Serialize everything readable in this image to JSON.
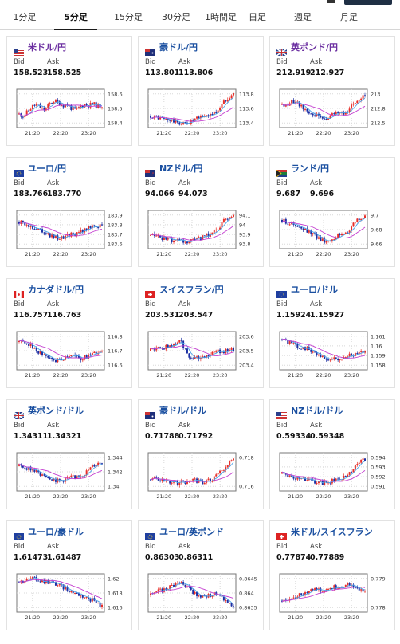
{
  "colors": {
    "up": "#e8302a",
    "down": "#1c2fa3",
    "ma_short": "#4aa3e8",
    "ma_long": "#c43fd0",
    "grid": "#d8d8d8"
  },
  "tabs": [
    {
      "label": "1分足",
      "active": false
    },
    {
      "label": "5分足",
      "active": true
    },
    {
      "label": "15分足",
      "active": false
    },
    {
      "label": "30分足",
      "active": false
    },
    {
      "label": "1時間足",
      "active": false
    },
    {
      "label": "日足",
      "active": false
    },
    {
      "label": "週足",
      "active": false
    },
    {
      "label": "月足",
      "active": false
    }
  ],
  "labels": {
    "bid": "Bid",
    "ask": "Ask"
  },
  "x_ticks": [
    "21:20",
    "22:20",
    "23:20"
  ],
  "pairs": [
    {
      "name": "米ドル/円",
      "flag": "us",
      "purple": true,
      "bid": "158.523",
      "ask": "158.525",
      "yticks": [
        "158.6",
        "158.5",
        "158.4"
      ],
      "trend": [
        0.35,
        0.3,
        0.42,
        0.55,
        0.6,
        0.5,
        0.45,
        0.62,
        0.7,
        0.65,
        0.58,
        0.6,
        0.5,
        0.45,
        0.55,
        0.6,
        0.58,
        0.62,
        0.55,
        0.58
      ]
    },
    {
      "name": "豪ドル/円",
      "flag": "au",
      "purple": false,
      "bid": "113.801",
      "ask": "113.806",
      "yticks": [
        "113.8",
        "113.6",
        "113.4"
      ],
      "trend": [
        0.3,
        0.28,
        0.25,
        0.22,
        0.2,
        0.18,
        0.15,
        0.1,
        0.12,
        0.15,
        0.2,
        0.25,
        0.3,
        0.32,
        0.35,
        0.4,
        0.55,
        0.7,
        0.82,
        0.88
      ]
    },
    {
      "name": "英ポンド/円",
      "flag": "gb",
      "purple": true,
      "bid": "212.919",
      "ask": "212.927",
      "yticks": [
        "213",
        "212.8",
        "212.5"
      ],
      "trend": [
        0.6,
        0.62,
        0.65,
        0.7,
        0.58,
        0.5,
        0.4,
        0.35,
        0.3,
        0.25,
        0.2,
        0.3,
        0.35,
        0.4,
        0.38,
        0.45,
        0.6,
        0.7,
        0.8,
        0.85
      ]
    },
    {
      "name": "ユーロ/円",
      "flag": "eu",
      "purple": false,
      "bid": "183.766",
      "ask": "183.770",
      "yticks": [
        "183.9",
        "183.8",
        "183.7",
        "183.6"
      ],
      "trend": [
        0.7,
        0.65,
        0.6,
        0.58,
        0.55,
        0.5,
        0.45,
        0.35,
        0.3,
        0.28,
        0.3,
        0.35,
        0.4,
        0.38,
        0.45,
        0.5,
        0.55,
        0.62,
        0.6,
        0.58
      ]
    },
    {
      "name": "NZドル/円",
      "flag": "nz",
      "purple": false,
      "bid": "94.066",
      "ask": "94.073",
      "yticks": [
        "94.1",
        "94",
        "93.9",
        "93.8"
      ],
      "trend": [
        0.35,
        0.33,
        0.3,
        0.28,
        0.25,
        0.22,
        0.2,
        0.18,
        0.15,
        0.18,
        0.22,
        0.25,
        0.3,
        0.35,
        0.4,
        0.5,
        0.6,
        0.75,
        0.85,
        0.9
      ]
    },
    {
      "name": "ランド/円",
      "flag": "za",
      "purple": false,
      "bid": "9.687",
      "ask": "9.696",
      "yticks": [
        "9.7",
        "9.68",
        "9.66"
      ],
      "trend": [
        0.75,
        0.7,
        0.68,
        0.6,
        0.55,
        0.5,
        0.45,
        0.38,
        0.3,
        0.25,
        0.2,
        0.25,
        0.3,
        0.35,
        0.4,
        0.45,
        0.6,
        0.75,
        0.8,
        0.82
      ]
    },
    {
      "name": "カナダドル/円",
      "flag": "ca",
      "purple": false,
      "bid": "116.757",
      "ask": "116.763",
      "yticks": [
        "116.8",
        "116.7",
        "116.6"
      ],
      "trend": [
        0.75,
        0.72,
        0.7,
        0.6,
        0.5,
        0.45,
        0.35,
        0.3,
        0.25,
        0.28,
        0.3,
        0.35,
        0.4,
        0.35,
        0.3,
        0.32,
        0.38,
        0.42,
        0.45,
        0.5
      ]
    },
    {
      "name": "スイスフラン/円",
      "flag": "ch",
      "purple": false,
      "bid": "203.531",
      "ask": "203.547",
      "yticks": [
        "203.6",
        "203.5",
        "203.4"
      ],
      "trend": [
        0.5,
        0.55,
        0.6,
        0.58,
        0.62,
        0.65,
        0.7,
        0.78,
        0.5,
        0.35,
        0.3,
        0.28,
        0.35,
        0.4,
        0.42,
        0.45,
        0.5,
        0.48,
        0.52,
        0.55
      ]
    },
    {
      "name": "ユーロ/ドル",
      "flag": "eu",
      "purple": false,
      "bid": "1.15924",
      "ask": "1.15927",
      "yticks": [
        "1.161",
        "1.16",
        "1.159",
        "1.158"
      ],
      "trend": [
        0.8,
        0.75,
        0.7,
        0.65,
        0.6,
        0.58,
        0.55,
        0.5,
        0.4,
        0.32,
        0.28,
        0.25,
        0.3,
        0.28,
        0.32,
        0.35,
        0.4,
        0.45,
        0.5,
        0.48
      ]
    },
    {
      "name": "英ポンド/ドル",
      "flag": "gb",
      "purple": false,
      "bid": "1.34311",
      "ask": "1.34321",
      "yticks": [
        "1.344",
        "1.342",
        "1.34"
      ],
      "trend": [
        0.65,
        0.62,
        0.6,
        0.55,
        0.5,
        0.45,
        0.4,
        0.35,
        0.3,
        0.25,
        0.28,
        0.32,
        0.35,
        0.38,
        0.4,
        0.45,
        0.55,
        0.65,
        0.72,
        0.75
      ]
    },
    {
      "name": "豪ドル/ドル",
      "flag": "au",
      "purple": false,
      "bid": "0.71788",
      "ask": "0.71792",
      "yticks": [
        "0.718",
        "0.716"
      ],
      "trend": [
        0.3,
        0.32,
        0.3,
        0.28,
        0.25,
        0.22,
        0.2,
        0.22,
        0.25,
        0.28,
        0.3,
        0.25,
        0.22,
        0.25,
        0.3,
        0.38,
        0.5,
        0.6,
        0.75,
        0.82
      ]
    },
    {
      "name": "NZドル/ドル",
      "flag": "us",
      "purple": false,
      "bid": "0.59334",
      "ask": "0.59348",
      "yticks": [
        "0.594",
        "0.593",
        "0.592",
        "0.591"
      ],
      "trend": [
        0.45,
        0.42,
        0.4,
        0.35,
        0.32,
        0.3,
        0.28,
        0.25,
        0.22,
        0.2,
        0.22,
        0.25,
        0.28,
        0.3,
        0.35,
        0.4,
        0.55,
        0.68,
        0.78,
        0.82
      ]
    },
    {
      "name": "ユーロ/豪ドル",
      "flag": "eu",
      "purple": false,
      "bid": "1.61473",
      "ask": "1.61487",
      "yticks": [
        "1.62",
        "1.618",
        "1.616"
      ],
      "trend": [
        0.8,
        0.82,
        0.85,
        0.88,
        0.85,
        0.82,
        0.8,
        0.78,
        0.75,
        0.7,
        0.65,
        0.6,
        0.55,
        0.5,
        0.45,
        0.4,
        0.35,
        0.3,
        0.22,
        0.15
      ]
    },
    {
      "name": "ユーロ/英ポンド",
      "flag": "eu",
      "purple": false,
      "bid": "0.86303",
      "ask": "0.86311",
      "yticks": [
        "0.8645",
        "0.864",
        "0.8635"
      ],
      "trend": [
        0.45,
        0.5,
        0.55,
        0.6,
        0.65,
        0.7,
        0.75,
        0.8,
        0.7,
        0.6,
        0.5,
        0.45,
        0.4,
        0.42,
        0.45,
        0.5,
        0.4,
        0.3,
        0.2,
        0.15
      ]
    },
    {
      "name": "米ドル/スイスフラン",
      "flag": "ch",
      "purple": false,
      "bid": "0.77874",
      "ask": "0.77889",
      "yticks": [
        "0.779",
        "0.778"
      ],
      "trend": [
        0.3,
        0.35,
        0.4,
        0.38,
        0.45,
        0.5,
        0.55,
        0.6,
        0.58,
        0.55,
        0.6,
        0.62,
        0.65,
        0.68,
        0.7,
        0.72,
        0.65,
        0.6,
        0.55,
        0.5
      ]
    }
  ]
}
